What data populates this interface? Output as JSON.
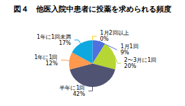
{
  "chart_data": {
    "type": "pie",
    "title": "図４　他医入院中患者に投薬を求められる頻度",
    "categories": [
      "1月1回",
      "2〜3月に1回",
      "半年に1回",
      "1年に1回",
      "1年に1回未満",
      "1月2回以上"
    ],
    "values": [
      9,
      20,
      42,
      12,
      17,
      0
    ],
    "value_labels": [
      "9%",
      "20%",
      "42%",
      "12%",
      "17%",
      "0%"
    ],
    "data_labels": true
  }
}
